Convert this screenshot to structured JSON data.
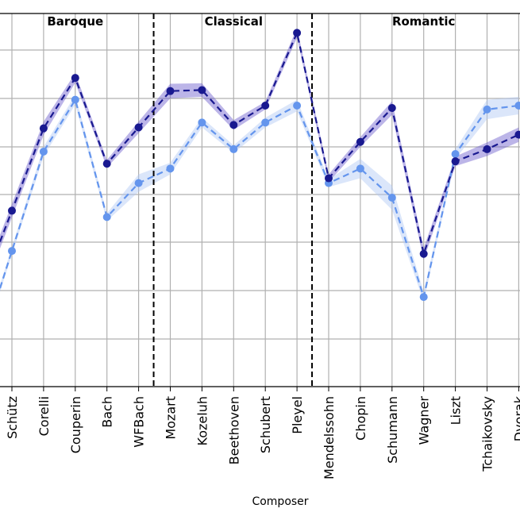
{
  "chart_data": {
    "type": "line",
    "xlabel": "Composer",
    "ylabel": "",
    "categories": [
      "Schütz",
      "Corelli",
      "Couperin",
      "Bach",
      "WFBach",
      "Mozart",
      "Kozeluh",
      "Beethoven",
      "Schubert",
      "Pleyel",
      "Mendelssohn",
      "Chopin",
      "Schumann",
      "Wagner",
      "Liszt",
      "Tchaikovsky",
      "Dvorak"
    ],
    "ylim": [
      0,
      7.7
    ],
    "grid": true,
    "eras": [
      {
        "label": "Baroque",
        "start_index": 0,
        "end_index": 4
      },
      {
        "label": "Classical",
        "start_index": 5,
        "end_index": 9
      },
      {
        "label": "Romantic",
        "start_index": 10,
        "end_index": 16
      }
    ],
    "era_dividers_after_index": [
      4,
      9
    ],
    "series": [
      {
        "color": "#191990",
        "band_color": "#6a5acd",
        "values": [
          3.63,
          5.33,
          6.37,
          4.6,
          5.35,
          6.1,
          6.12,
          5.4,
          5.8,
          7.3,
          4.3,
          5.05,
          5.75,
          2.74,
          4.65,
          4.9,
          5.2
        ],
        "band_half_width": [
          0.14,
          0.14,
          0.1,
          0.08,
          0.12,
          0.15,
          0.14,
          0.1,
          0.08,
          0.1,
          0.08,
          0.1,
          0.14,
          0.12,
          0.1,
          0.14,
          0.15
        ]
      },
      {
        "color": "#6495ed",
        "band_color": "#b0c8f5",
        "values": [
          2.8,
          4.85,
          5.92,
          3.5,
          4.2,
          4.5,
          5.45,
          4.9,
          5.45,
          5.8,
          4.2,
          4.5,
          3.9,
          1.85,
          4.8,
          5.72,
          5.8
        ],
        "band_half_width": [
          0.08,
          0.1,
          0.1,
          0.08,
          0.18,
          0.12,
          0.1,
          0.08,
          0.1,
          0.12,
          0.08,
          0.2,
          0.25,
          0.1,
          0.1,
          0.2,
          0.18
        ]
      }
    ]
  }
}
